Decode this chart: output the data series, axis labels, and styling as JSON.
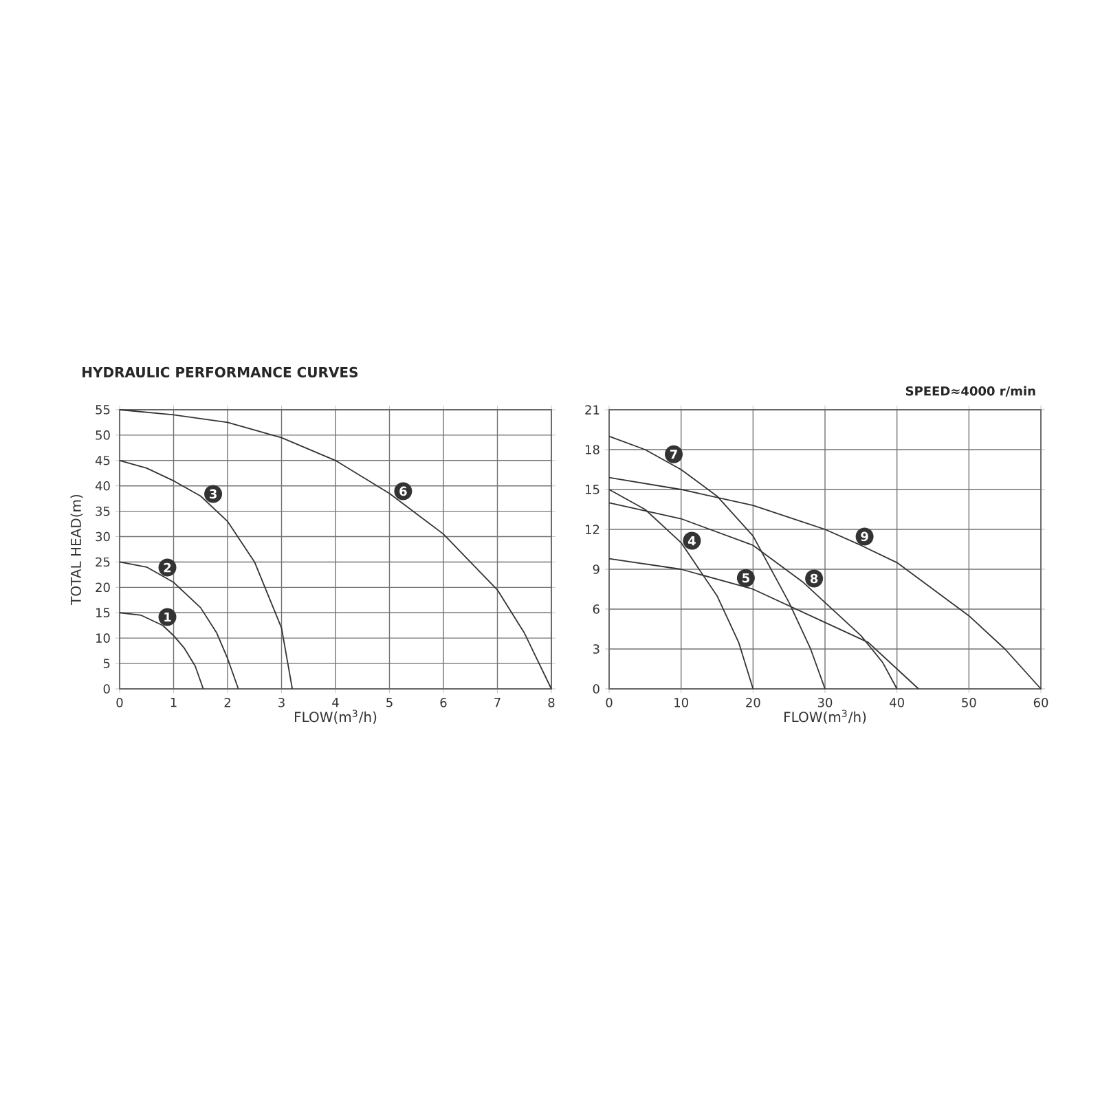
{
  "chart_data": [
    {
      "type": "line",
      "title": "HYDRAULIC PERFORMANCE CURVES",
      "xlabel": "FLOW(m$^{3}$/h)",
      "ylabel": "TOTAL HEAD(m)",
      "xlim": [
        0,
        8
      ],
      "ylim": [
        0,
        55
      ],
      "xticks": [
        0,
        1,
        2,
        3,
        4,
        5,
        6,
        7,
        8
      ],
      "yticks": [
        0,
        5,
        10,
        15,
        20,
        25,
        30,
        35,
        40,
        45,
        50,
        55
      ],
      "grid": true,
      "marker": "none",
      "line_style": "solid",
      "series": [
        {
          "name": "1",
          "color": "#333333",
          "x": [
            0,
            0.4,
            0.8,
            1.0,
            1.2,
            1.4,
            1.55
          ],
          "values": [
            15,
            14.5,
            12.5,
            10.5,
            8,
            4.5,
            0
          ]
        },
        {
          "name": "2",
          "color": "#333333",
          "x": [
            0,
            0.5,
            1,
            1.5,
            1.8,
            2,
            2.2
          ],
          "values": [
            25,
            24,
            21,
            16,
            11,
            6,
            0
          ]
        },
        {
          "name": "3",
          "color": "#333333",
          "x": [
            0,
            0.5,
            1,
            1.5,
            2,
            2.5,
            3,
            3.2
          ],
          "values": [
            45,
            43.5,
            41,
            38,
            33,
            25,
            12,
            0
          ]
        },
        {
          "name": "6",
          "color": "#333333",
          "x": [
            0,
            1,
            2,
            3,
            4,
            5,
            6,
            7,
            7.5,
            8
          ],
          "values": [
            55,
            54,
            52.5,
            49.5,
            45,
            38.5,
            30.5,
            19.5,
            11,
            0
          ]
        }
      ]
    },
    {
      "type": "line",
      "xlabel": "FLOW(m$^{3}$/h)",
      "annotations": [
        "SPEED≈4000 r/min"
      ],
      "xlim": [
        0,
        60
      ],
      "ylim": [
        0,
        21
      ],
      "xticks": [
        0,
        10,
        20,
        30,
        40,
        50,
        60
      ],
      "yticks": [
        0,
        3,
        6,
        9,
        12,
        15,
        18,
        21
      ],
      "grid": true,
      "marker": "none",
      "line_style": "solid",
      "series": [
        {
          "name": "4",
          "color": "#333333",
          "x": [
            0,
            5,
            10,
            15,
            18,
            20
          ],
          "values": [
            15,
            13.5,
            11,
            7,
            3.5,
            0
          ]
        },
        {
          "name": "5",
          "color": "#333333",
          "x": [
            0,
            10,
            20,
            30,
            36,
            40,
            43
          ],
          "values": [
            9.8,
            9,
            7.5,
            5,
            3.5,
            1.5,
            0
          ]
        },
        {
          "name": "7",
          "color": "#333333",
          "x": [
            0,
            5,
            10,
            15,
            20,
            25,
            28,
            30
          ],
          "values": [
            19,
            18,
            16.5,
            14.5,
            11.5,
            6.5,
            3,
            0
          ]
        },
        {
          "name": "8",
          "color": "#333333",
          "x": [
            0,
            10,
            20,
            27,
            30,
            35,
            38,
            40
          ],
          "values": [
            14,
            12.8,
            10.8,
            8,
            6.5,
            4,
            2,
            0
          ]
        },
        {
          "name": "9",
          "color": "#333333",
          "x": [
            0,
            10,
            20,
            30,
            35,
            40,
            50,
            55,
            60
          ],
          "values": [
            15.9,
            15,
            13.8,
            12,
            10.8,
            9.5,
            5.5,
            3,
            0
          ]
        }
      ]
    }
  ]
}
